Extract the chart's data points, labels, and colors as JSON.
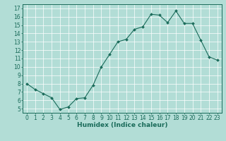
{
  "x": [
    0,
    1,
    2,
    3,
    4,
    5,
    6,
    7,
    8,
    9,
    10,
    11,
    12,
    13,
    14,
    15,
    16,
    17,
    18,
    19,
    20,
    21,
    22,
    23
  ],
  "y": [
    8.0,
    7.3,
    6.8,
    6.3,
    4.9,
    5.2,
    6.2,
    6.3,
    7.8,
    10.0,
    11.5,
    13.0,
    13.3,
    14.5,
    14.8,
    16.3,
    16.2,
    15.3,
    16.7,
    15.2,
    15.2,
    13.2,
    11.2,
    10.8
  ],
  "line_color": "#1a6b5a",
  "marker": "D",
  "marker_size": 2.0,
  "bg_color": "#b2ddd6",
  "grid_color": "#ffffff",
  "tick_color": "#1a6b5a",
  "label_color": "#1a6b5a",
  "xlabel": "Humidex (Indice chaleur)",
  "ylim": [
    4.5,
    17.5
  ],
  "xlim": [
    -0.5,
    23.5
  ],
  "yticks": [
    5,
    6,
    7,
    8,
    9,
    10,
    11,
    12,
    13,
    14,
    15,
    16,
    17
  ],
  "xticks": [
    0,
    1,
    2,
    3,
    4,
    5,
    6,
    7,
    8,
    9,
    10,
    11,
    12,
    13,
    14,
    15,
    16,
    17,
    18,
    19,
    20,
    21,
    22,
    23
  ],
  "xtick_labels": [
    "0",
    "1",
    "2",
    "3",
    "4",
    "5",
    "6",
    "7",
    "8",
    "9",
    "10",
    "11",
    "12",
    "13",
    "14",
    "15",
    "16",
    "17",
    "18",
    "19",
    "20",
    "21",
    "22",
    "23"
  ],
  "ytick_labels": [
    "5",
    "6",
    "7",
    "8",
    "9",
    "10",
    "11",
    "12",
    "13",
    "14",
    "15",
    "16",
    "17"
  ],
  "axis_fontsize": 5.5,
  "xlabel_fontsize": 6.5,
  "linewidth": 0.8
}
